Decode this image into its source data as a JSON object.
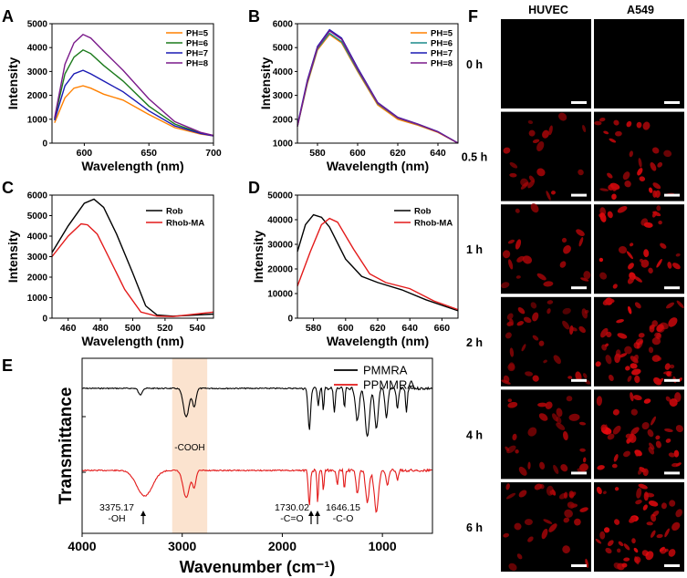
{
  "colors": {
    "orange": "#ff8000",
    "green": "#1b7a1b",
    "blue": "#1a1ab4",
    "purple": "#7a1a8a",
    "teal": "#1a8a8a",
    "black": "#000000",
    "red": "#e31a1a",
    "band": "#fbe3cf"
  },
  "panels": {
    "A": {
      "letter": "A"
    },
    "B": {
      "letter": "B"
    },
    "C": {
      "letter": "C"
    },
    "D": {
      "letter": "D"
    },
    "E": {
      "letter": "E"
    },
    "F": {
      "letter": "F"
    }
  },
  "chart_data": [
    {
      "id": "A",
      "type": "line",
      "title": "",
      "xlabel": "Wavelength (nm)",
      "ylabel": "Intensity",
      "xlim": [
        575,
        700
      ],
      "ylim": [
        0,
        5000
      ],
      "xticks": [
        600,
        650,
        700
      ],
      "yticks": [
        0,
        1000,
        2000,
        3000,
        4000,
        5000
      ],
      "legend": "top-right",
      "series": [
        {
          "name": "PH=5",
          "color": "orange",
          "x": [
            577,
            585,
            592,
            599,
            605,
            615,
            630,
            650,
            670,
            690,
            700
          ],
          "y": [
            850,
            1900,
            2300,
            2400,
            2300,
            2050,
            1800,
            1200,
            650,
            380,
            300
          ]
        },
        {
          "name": "PH=6",
          "color": "green",
          "x": [
            577,
            585,
            592,
            599,
            605,
            615,
            630,
            650,
            670,
            690,
            700
          ],
          "y": [
            1000,
            2900,
            3600,
            3900,
            3750,
            3250,
            2600,
            1550,
            800,
            420,
            320
          ]
        },
        {
          "name": "PH=7",
          "color": "blue",
          "x": [
            577,
            585,
            592,
            599,
            605,
            615,
            630,
            650,
            670,
            690,
            700
          ],
          "y": [
            950,
            2400,
            2900,
            3050,
            2900,
            2600,
            2150,
            1350,
            720,
            400,
            300
          ]
        },
        {
          "name": "PH=8",
          "color": "purple",
          "x": [
            577,
            585,
            592,
            599,
            605,
            615,
            630,
            650,
            670,
            690,
            700
          ],
          "y": [
            1050,
            3300,
            4200,
            4550,
            4400,
            3850,
            3050,
            1850,
            900,
            450,
            320
          ]
        }
      ]
    },
    {
      "id": "B",
      "type": "line",
      "title": "",
      "xlabel": "Wavelength (nm)",
      "ylabel": "Intensity",
      "xlim": [
        570,
        650
      ],
      "ylim": [
        1000,
        6000
      ],
      "xticks": [
        580,
        600,
        620,
        640
      ],
      "yticks": [
        1000,
        2000,
        3000,
        4000,
        5000,
        6000
      ],
      "legend": "top-right",
      "series": [
        {
          "name": "PH=5",
          "color": "orange",
          "x": [
            570,
            575,
            580,
            586,
            592,
            600,
            610,
            620,
            630,
            640,
            650
          ],
          "y": [
            1700,
            3500,
            4900,
            5550,
            5200,
            4000,
            2600,
            2000,
            1750,
            1450,
            1000
          ]
        },
        {
          "name": "PH=6",
          "color": "teal",
          "x": [
            570,
            575,
            580,
            586,
            592,
            600,
            610,
            620,
            630,
            640,
            650
          ],
          "y": [
            1700,
            3550,
            4950,
            5600,
            5250,
            4050,
            2650,
            2050,
            1780,
            1470,
            1000
          ]
        },
        {
          "name": "PH=7",
          "color": "blue",
          "x": [
            570,
            575,
            580,
            586,
            592,
            600,
            610,
            620,
            630,
            640,
            650
          ],
          "y": [
            1750,
            3650,
            5050,
            5750,
            5400,
            4150,
            2700,
            2080,
            1800,
            1480,
            1000
          ]
        },
        {
          "name": "PH=8",
          "color": "purple",
          "x": [
            570,
            575,
            580,
            586,
            592,
            600,
            610,
            620,
            630,
            640,
            650
          ],
          "y": [
            1700,
            3600,
            5000,
            5700,
            5350,
            4100,
            2680,
            2060,
            1790,
            1470,
            1000
          ]
        }
      ]
    },
    {
      "id": "C",
      "type": "line",
      "title": "",
      "xlabel": "Wavelength (nm)",
      "ylabel": "Intensity",
      "xlim": [
        450,
        550
      ],
      "ylim": [
        0,
        6000
      ],
      "xticks": [
        460,
        480,
        500,
        520,
        540
      ],
      "yticks": [
        0,
        1000,
        2000,
        3000,
        4000,
        5000,
        6000
      ],
      "legend": "top-right",
      "series": [
        {
          "name": "Rob",
          "color": "black",
          "x": [
            450,
            460,
            470,
            476,
            482,
            490,
            500,
            508,
            515,
            525,
            550
          ],
          "y": [
            3200,
            4500,
            5600,
            5800,
            5400,
            4100,
            2200,
            600,
            150,
            100,
            200
          ]
        },
        {
          "name": "Rhob-MA",
          "color": "red",
          "x": [
            450,
            460,
            468,
            472,
            478,
            485,
            495,
            505,
            515,
            525,
            550
          ],
          "y": [
            3000,
            4000,
            4600,
            4550,
            4100,
            3000,
            1400,
            300,
            100,
            80,
            300
          ]
        }
      ]
    },
    {
      "id": "D",
      "type": "line",
      "title": "",
      "xlabel": "Wavelength (nm)",
      "ylabel": "Intensity",
      "xlim": [
        570,
        670
      ],
      "ylim": [
        0,
        50000
      ],
      "xticks": [
        580,
        600,
        620,
        640,
        660
      ],
      "yticks": [
        0,
        10000,
        20000,
        30000,
        40000,
        50000
      ],
      "legend": "top-right",
      "series": [
        {
          "name": "Rob",
          "color": "black",
          "x": [
            570,
            575,
            580,
            585,
            590,
            600,
            610,
            620,
            635,
            650,
            670
          ],
          "y": [
            27000,
            38000,
            42000,
            41000,
            37000,
            24000,
            17000,
            14500,
            11500,
            7500,
            3000
          ]
        },
        {
          "name": "Rhob-MA",
          "color": "red",
          "x": [
            570,
            578,
            585,
            590,
            595,
            605,
            615,
            625,
            640,
            655,
            670
          ],
          "y": [
            13000,
            27000,
            38000,
            40500,
            39000,
            28000,
            18000,
            14500,
            12000,
            7000,
            3500
          ]
        }
      ]
    },
    {
      "id": "E",
      "type": "line",
      "title": "",
      "xlabel": "Wavenumber (cm⁻¹)",
      "ylabel": "Transmittance",
      "xlim": [
        4000,
        500
      ],
      "xticks": [
        4000,
        3000,
        2000,
        1000
      ],
      "legend": "top-right",
      "band_range": [
        3100,
        2750
      ],
      "band_label": "-COOH",
      "series": [
        {
          "name": "PMMRA",
          "color": "black"
        },
        {
          "name": "PPMMRA",
          "color": "red"
        }
      ],
      "annotations": [
        {
          "x": 3375.17,
          "text1": "3375.17",
          "text2": "-OH"
        },
        {
          "x": 1730.02,
          "text1": "1730.02",
          "text2": "-C=O"
        },
        {
          "x": 1646.15,
          "text1": "1646.15",
          "text2": "-C-O"
        }
      ]
    }
  ],
  "microscopy": {
    "col_headers": [
      "HUVEC",
      "A549"
    ],
    "rows": [
      {
        "label": "0 h",
        "density": 0
      },
      {
        "label": "0.5 h",
        "density": 0.5
      },
      {
        "label": "1 h",
        "density": 0.5
      },
      {
        "label": "2 h",
        "density": 0.9
      },
      {
        "label": "4 h",
        "density": 0.7
      },
      {
        "label": "6 h",
        "density": 0.75
      }
    ]
  }
}
